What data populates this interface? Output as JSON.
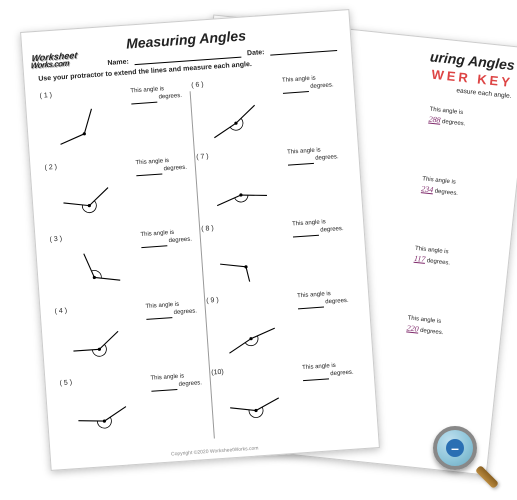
{
  "title": "Measuring Angles",
  "answer_key_label": "WER KEY",
  "header": {
    "name_label": "Name:",
    "date_label": "Date:"
  },
  "instruction": "Use your protractor to extend the lines and measure each angle.",
  "logo": {
    "line1": "Worksheet",
    "line2": "Works.com"
  },
  "angle_text": {
    "prefix": "This angle is",
    "suffix": "degrees."
  },
  "copyright": "Copyright ©2020 WorksheetWorks.com",
  "front_problems": [
    {
      "n": "( 1 )",
      "a1": 200,
      "a2": 70,
      "arc": false
    },
    {
      "n": "( 2 )",
      "a1": 170,
      "a2": 40,
      "arc": true
    },
    {
      "n": "( 3 )",
      "a1": 350,
      "a2": 110,
      "arc": true
    },
    {
      "n": "( 4 )",
      "a1": 180,
      "a2": 40,
      "arc": true
    },
    {
      "n": "( 5 )",
      "a1": 175,
      "a2": 30,
      "arc": true
    },
    {
      "n": "( 6 )",
      "a1": 210,
      "a2": 40,
      "arc": true
    },
    {
      "n": "( 7 )",
      "a1": 200,
      "a2": 355,
      "arc": true
    },
    {
      "n": "( 8 )",
      "a1": 170,
      "a2": 280,
      "arc": false
    },
    {
      "n": "( 9 )",
      "a1": 210,
      "a2": 20,
      "arc": true
    },
    {
      "n": "(10)",
      "a1": 170,
      "a2": 25,
      "arc": true
    }
  ],
  "back_answers": [
    {
      "val": "288"
    },
    {
      "val": "234"
    },
    {
      "val": "117"
    },
    {
      "val": "220"
    },
    {
      "val": ""
    }
  ],
  "colors": {
    "answer_key": "#d44444",
    "answer_val": "#7f2a6b",
    "mag_glass": "#8fc6da",
    "mag_button": "#2a6fb3",
    "mag_handle": "#8a6020"
  }
}
